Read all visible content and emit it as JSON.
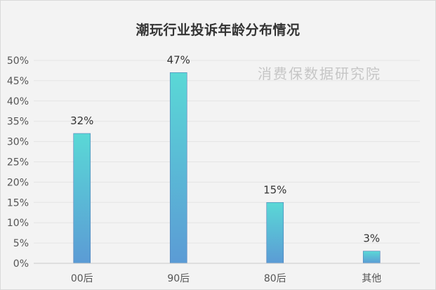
{
  "chart_data": {
    "type": "bar",
    "title": "潮玩行业投诉年龄分布情况",
    "watermark": "消费保数据研究院",
    "categories": [
      "00后",
      "90后",
      "80后",
      "其他"
    ],
    "values": [
      32,
      47,
      15,
      3
    ],
    "data_labels": [
      "32%",
      "47%",
      "15%",
      "3%"
    ],
    "y_ticks": [
      "0%",
      "5%",
      "10%",
      "15%",
      "20%",
      "25%",
      "30%",
      "35%",
      "40%",
      "45%",
      "50%"
    ],
    "ylim": [
      0,
      50
    ],
    "y_unit": "%",
    "grid": true,
    "legend": "none",
    "colors": {
      "bar_top": "#5ad8d6",
      "bar_bottom": "#5b9bd5",
      "bar_edge": "#4f7fb8",
      "grid": "#e4e4e4",
      "axis": "#c8c8c8",
      "background": "#f3f3f3"
    }
  }
}
